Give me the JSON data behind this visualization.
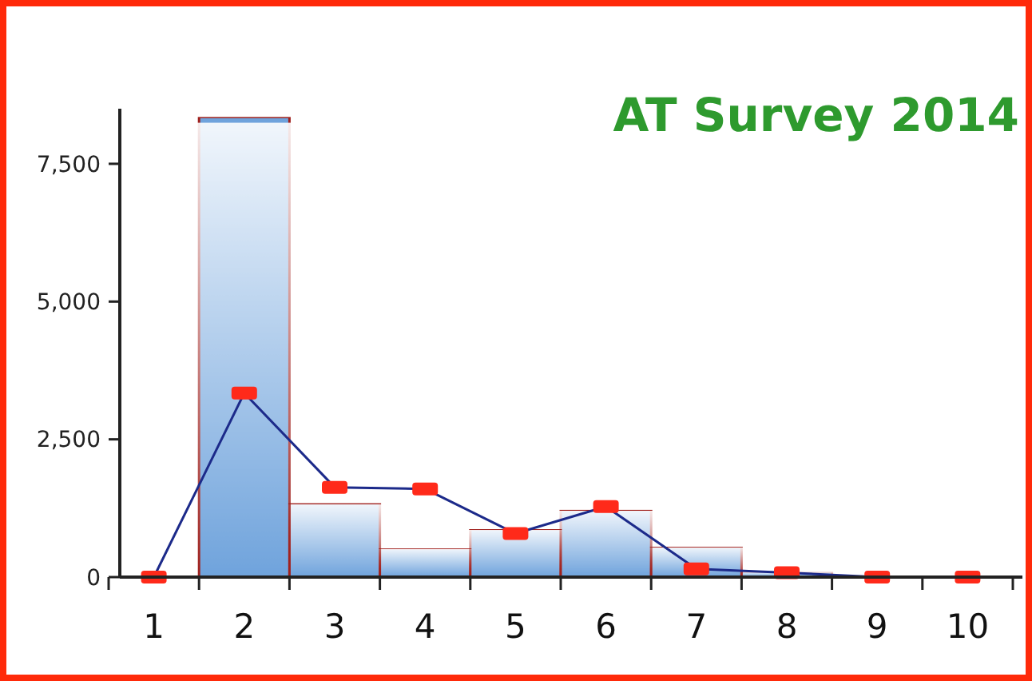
{
  "chart_data": {
    "type": "bar",
    "title": "AT Survey 2014",
    "categories": [
      "1",
      "2",
      "3",
      "4",
      "5",
      "6",
      "7",
      "8",
      "9",
      "10"
    ],
    "series": [
      {
        "color": "#6fa3dc",
        "values": [
          0,
          8350,
          1340,
          520,
          870,
          1220,
          550,
          100,
          30,
          30
        ]
      },
      {
        "type": "line",
        "color": "#1c2a8a",
        "marker": "square",
        "values": [
          0,
          3340,
          1630,
          1600,
          790,
          1280,
          150,
          80,
          0,
          0
        ]
      }
    ],
    "ylim": [
      0,
      8500
    ],
    "yticks": [
      0,
      {
        "value": 2500,
        "label": "2,500"
      },
      {
        "value": 5000,
        "label": "5,000"
      },
      {
        "value": 7500,
        "label": "7,500"
      }
    ],
    "grid": false,
    "legend": false
  }
}
